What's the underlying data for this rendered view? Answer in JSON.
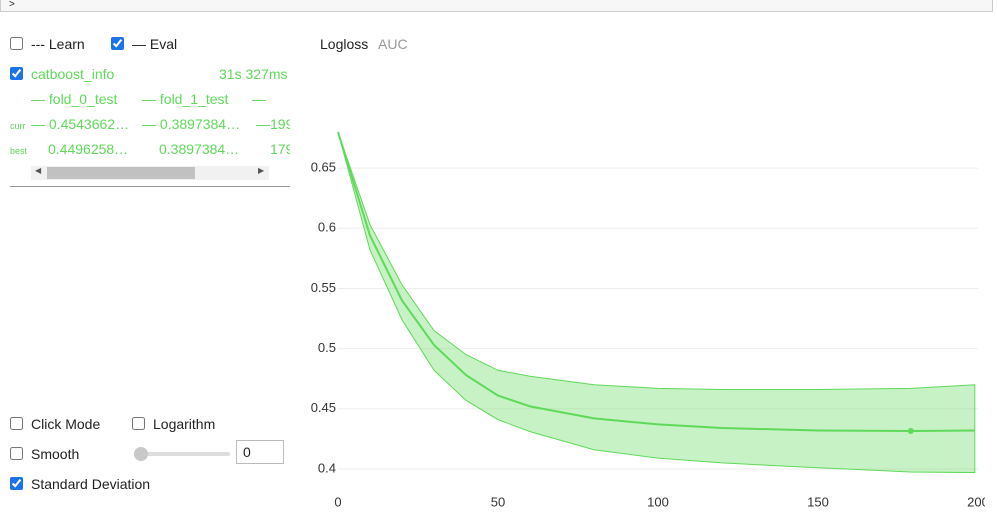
{
  "header": {
    "text": ">"
  },
  "controls": {
    "learn": {
      "label": "--- Learn",
      "checked": false
    },
    "eval": {
      "label": "— Eval",
      "checked": true
    }
  },
  "run": {
    "name": "catboost_info",
    "checked": true,
    "time": "31s 327ms",
    "columns": [
      "— fold_0_test",
      "— fold_1_test",
      "—"
    ],
    "rows": [
      {
        "label": "curr",
        "cells": [
          "— 0.4543662…",
          "— 0.3897384…",
          "—199"
        ]
      },
      {
        "label": "best",
        "cells": [
          "0.4496258…",
          "0.3897384…",
          "179"
        ]
      }
    ]
  },
  "options": {
    "click_mode": {
      "label": "Click Mode",
      "checked": false
    },
    "logarithm": {
      "label": "Logarithm",
      "checked": false
    },
    "smooth": {
      "label": "Smooth",
      "checked": false,
      "value": "0"
    },
    "std": {
      "label": "Standard Deviation",
      "checked": true
    }
  },
  "chart_data": {
    "type": "line",
    "tabs": [
      "Logloss",
      "AUC"
    ],
    "x": [
      0,
      10,
      20,
      30,
      40,
      50,
      60,
      80,
      100,
      120,
      150,
      179,
      199
    ],
    "series": [
      {
        "color": "#5fd95a",
        "values": [
          0.68,
          0.594,
          0.54,
          0.503,
          0.478,
          0.461,
          0.452,
          0.442,
          0.437,
          0.434,
          0.432,
          0.4315,
          0.432
        ],
        "upper": [
          0.68,
          0.603,
          0.553,
          0.515,
          0.495,
          0.482,
          0.477,
          0.47,
          0.467,
          0.466,
          0.466,
          0.467,
          0.47
        ],
        "lower": [
          0.68,
          0.582,
          0.524,
          0.482,
          0.457,
          0.441,
          0.431,
          0.416,
          0.409,
          0.405,
          0.401,
          0.3975,
          0.397
        ]
      }
    ],
    "best_point": {
      "x": 179,
      "y": 0.4315
    },
    "xlim": [
      0,
      200
    ],
    "ylim": [
      0.385,
      0.685
    ],
    "xticks": [
      0,
      50,
      100,
      150,
      200
    ],
    "yticks": [
      0.4,
      0.45,
      0.5,
      0.55,
      0.6,
      0.65
    ],
    "grid": true
  }
}
